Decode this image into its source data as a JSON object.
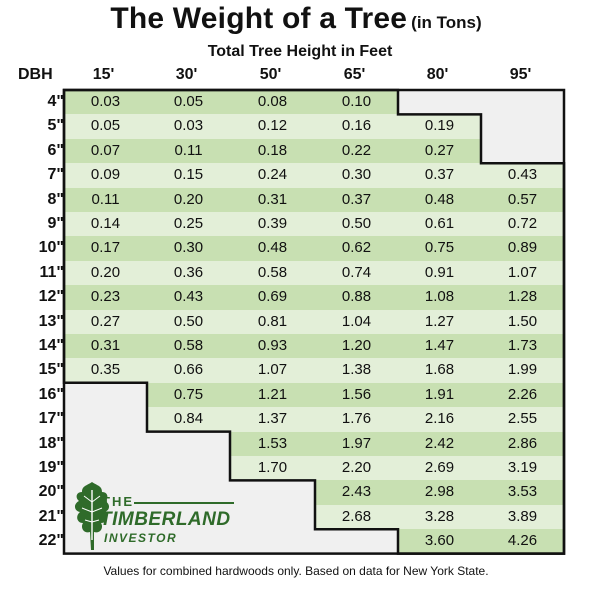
{
  "title": {
    "main": "The Weight of a Tree",
    "sub": "(in Tons)"
  },
  "subtitle": "Total Tree Height in Feet",
  "row_header_label": "DBH",
  "columns": [
    "15'",
    "30'",
    "50'",
    "65'",
    "80'",
    "95'"
  ],
  "rows": [
    {
      "dbh": "4\"",
      "values": [
        "0.03",
        "0.05",
        "0.08",
        "0.10",
        "",
        ""
      ]
    },
    {
      "dbh": "5\"",
      "values": [
        "0.05",
        "0.03",
        "0.12",
        "0.16",
        "0.19",
        ""
      ]
    },
    {
      "dbh": "6\"",
      "values": [
        "0.07",
        "0.11",
        "0.18",
        "0.22",
        "0.27",
        ""
      ]
    },
    {
      "dbh": "7\"",
      "values": [
        "0.09",
        "0.15",
        "0.24",
        "0.30",
        "0.37",
        "0.43"
      ]
    },
    {
      "dbh": "8\"",
      "values": [
        "0.11",
        "0.20",
        "0.31",
        "0.37",
        "0.48",
        "0.57"
      ]
    },
    {
      "dbh": "9\"",
      "values": [
        "0.14",
        "0.25",
        "0.39",
        "0.50",
        "0.61",
        "0.72"
      ]
    },
    {
      "dbh": "10\"",
      "values": [
        "0.17",
        "0.30",
        "0.48",
        "0.62",
        "0.75",
        "0.89"
      ]
    },
    {
      "dbh": "11\"",
      "values": [
        "0.20",
        "0.36",
        "0.58",
        "0.74",
        "0.91",
        "1.07"
      ]
    },
    {
      "dbh": "12\"",
      "values": [
        "0.23",
        "0.43",
        "0.69",
        "0.88",
        "1.08",
        "1.28"
      ]
    },
    {
      "dbh": "13\"",
      "values": [
        "0.27",
        "0.50",
        "0.81",
        "1.04",
        "1.27",
        "1.50"
      ]
    },
    {
      "dbh": "14\"",
      "values": [
        "0.31",
        "0.58",
        "0.93",
        "1.20",
        "1.47",
        "1.73"
      ]
    },
    {
      "dbh": "15\"",
      "values": [
        "0.35",
        "0.66",
        "1.07",
        "1.38",
        "1.68",
        "1.99"
      ]
    },
    {
      "dbh": "16\"",
      "values": [
        "",
        "0.75",
        "1.21",
        "1.56",
        "1.91",
        "2.26"
      ]
    },
    {
      "dbh": "17\"",
      "values": [
        "",
        "0.84",
        "1.37",
        "1.76",
        "2.16",
        "2.55"
      ]
    },
    {
      "dbh": "18\"",
      "values": [
        "",
        "",
        "1.53",
        "1.97",
        "2.42",
        "2.86"
      ]
    },
    {
      "dbh": "19\"",
      "values": [
        "",
        "",
        "1.70",
        "2.20",
        "2.69",
        "3.19"
      ]
    },
    {
      "dbh": "20\"",
      "values": [
        "",
        "",
        "",
        "2.43",
        "2.98",
        "3.53"
      ]
    },
    {
      "dbh": "21\"",
      "values": [
        "",
        "",
        "",
        "2.68",
        "3.28",
        "3.89"
      ]
    },
    {
      "dbh": "22\"",
      "values": [
        "",
        "",
        "",
        "",
        "3.60",
        "4.26"
      ]
    }
  ],
  "logo": {
    "line1": "THE",
    "line2": "TIMBERLAND",
    "line3": "INVESTOR",
    "icon": "oak-leaf-icon"
  },
  "footer": "Values for combined hardwoods only. Based on data for New York State.",
  "colors": {
    "band_dark": "#c8e0b2",
    "band_light": "#e3efd8",
    "empty": "#f0f0f0",
    "logo_green": "#2f6b2a"
  }
}
